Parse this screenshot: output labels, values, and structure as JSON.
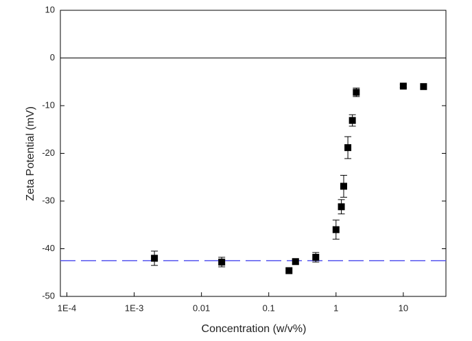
{
  "chart_data": {
    "type": "scatter",
    "x_label": "Concentration (w/v%)",
    "y_label": "Zeta Potential (mV)",
    "x_scale": "log",
    "x": [
      0.002,
      0.02,
      0.2,
      0.25,
      0.5,
      1.0,
      1.2,
      1.3,
      1.5,
      1.75,
      2.0,
      10,
      20
    ],
    "series": [
      {
        "color": "#000000",
        "values": [
          -42,
          -42.8,
          -44.6,
          -42.7,
          -41.8,
          -36,
          -31.2,
          -26.9,
          -18.8,
          -13.1,
          -7.2,
          -5.9,
          -6.0
        ],
        "errors": [
          1.5,
          1,
          null,
          0.5,
          1,
          2,
          1.5,
          2.3,
          2.3,
          1.2,
          0.9,
          0.3,
          null
        ]
      }
    ],
    "hlines": [
      {
        "value": 0,
        "style": "solid",
        "color": "#000000"
      },
      {
        "value": -42.5,
        "style": "dashed",
        "color": "#5555ee"
      }
    ],
    "xlim": [
      8e-05,
      43
    ],
    "xticks": [
      {
        "value": 0.0001,
        "label": "1E-4"
      },
      {
        "value": 0.001,
        "label": "1E-3"
      },
      0.01,
      0.1,
      1,
      10
    ],
    "ylim": [
      -50,
      10
    ],
    "yticks": [
      -50,
      -40,
      -30,
      -20,
      -10,
      0,
      10
    ]
  }
}
